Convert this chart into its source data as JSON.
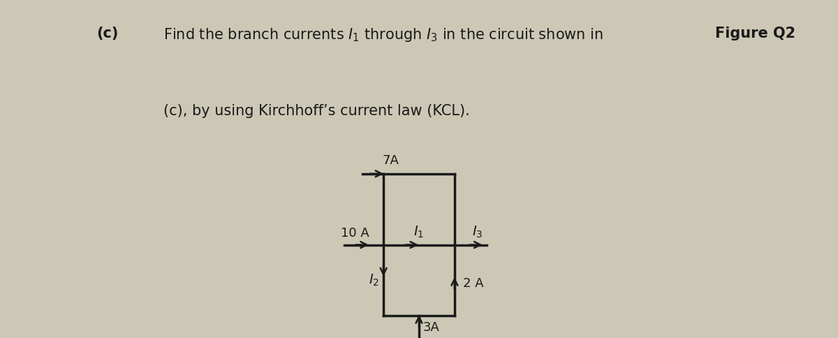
{
  "bg_color": "#ccc8b5",
  "title_text": "(c)",
  "desc1": "Find the branch currents $I_1$ through $I_3$ in the circuit shown in ",
  "desc1_bold": "Figure Q2",
  "desc2": "(c), by using Kirchhoff’s current law (KCL).",
  "figure_label": "Figure Q2 (c)",
  "line_color": "#1a1a1a",
  "line_width": 2.5,
  "arrow_lw": 1.8,
  "font_size_text": 15,
  "font_size_circuit": 13,
  "TL": [
    0.0,
    1.0
  ],
  "TR": [
    1.0,
    1.0
  ],
  "ML": [
    0.0,
    0.0
  ],
  "MR": [
    1.0,
    0.0
  ],
  "BL": [
    0.0,
    -1.0
  ],
  "BR": [
    1.0,
    -1.0
  ],
  "xlim": [
    -0.75,
    1.75
  ],
  "ylim": [
    -1.55,
    1.4
  ]
}
